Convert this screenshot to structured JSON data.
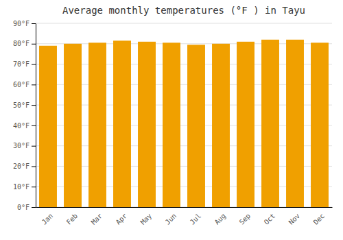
{
  "chart_data": {
    "type": "bar",
    "title": "Average monthly temperatures (°F ) in Tayu",
    "categories": [
      "Jan",
      "Feb",
      "Mar",
      "Apr",
      "May",
      "Jun",
      "Jul",
      "Aug",
      "Sep",
      "Oct",
      "Nov",
      "Dec"
    ],
    "values": [
      79,
      80,
      80.5,
      81.5,
      81,
      80.5,
      79.5,
      80,
      81,
      82,
      82,
      80.5
    ],
    "color": "#F0A000",
    "ylim": [
      0,
      90
    ],
    "yticks": [
      {
        "value": 0,
        "label": "0°F"
      },
      {
        "value": 10,
        "label": "10°F"
      },
      {
        "value": 20,
        "label": "20°F"
      },
      {
        "value": 30,
        "label": "30°F"
      },
      {
        "value": 40,
        "label": "40°F"
      },
      {
        "value": 50,
        "label": "50°F"
      },
      {
        "value": 60,
        "label": "60°F"
      },
      {
        "value": 70,
        "label": "70°F"
      },
      {
        "value": 80,
        "label": "80°F"
      },
      {
        "value": 90,
        "label": "90°F"
      }
    ],
    "grid": true
  }
}
